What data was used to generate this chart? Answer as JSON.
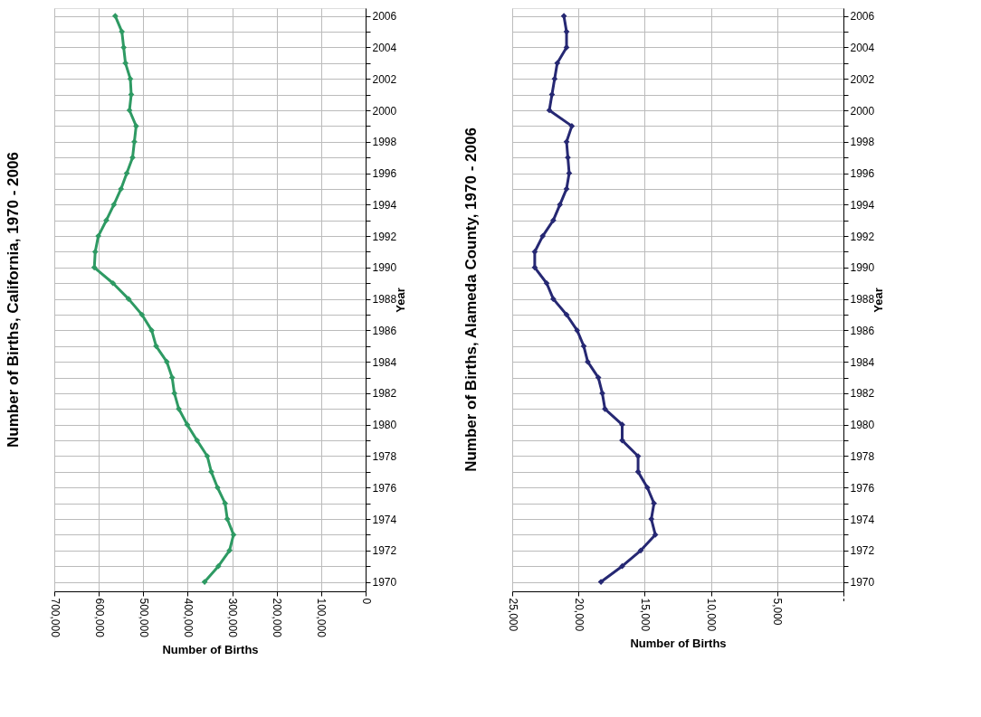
{
  "chart_data": [
    {
      "type": "line",
      "orientation": "horizontal",
      "title": "Number of Births, California, 1970 - 2006",
      "ylabel": "Year",
      "xlabel": "Number of Births",
      "x": [
        1970,
        1971,
        1972,
        1973,
        1974,
        1975,
        1976,
        1977,
        1978,
        1979,
        1980,
        1981,
        1982,
        1983,
        1984,
        1985,
        1986,
        1987,
        1988,
        1989,
        1990,
        1991,
        1992,
        1993,
        1994,
        1995,
        1996,
        1997,
        1998,
        1999,
        2000,
        2001,
        2002,
        2003,
        2004,
        2005,
        2006
      ],
      "series": [
        {
          "color": "#2e9a63",
          "values": [
            362000,
            331000,
            306000,
            297000,
            311000,
            316000,
            333000,
            347000,
            356000,
            379000,
            401000,
            420000,
            430000,
            435000,
            447000,
            471000,
            481000,
            503000,
            533000,
            568000,
            610000,
            608000,
            601000,
            583000,
            566000,
            550000,
            537000,
            524000,
            520000,
            516000,
            531000,
            527000,
            529000,
            540000,
            544000,
            548000,
            563000
          ]
        }
      ],
      "ylim": [
        1969.4,
        2006.5
      ],
      "yticks": [
        1970,
        {
          "value": 1971,
          "label": null
        },
        1972,
        {
          "value": 1973,
          "label": null
        },
        1974,
        {
          "value": 1975,
          "label": null
        },
        1976,
        {
          "value": 1977,
          "label": null
        },
        1978,
        {
          "value": 1979,
          "label": null
        },
        1980,
        {
          "value": 1981,
          "label": null
        },
        1982,
        {
          "value": 1983,
          "label": null
        },
        1984,
        {
          "value": 1985,
          "label": null
        },
        1986,
        {
          "value": 1987,
          "label": null
        },
        1988,
        {
          "value": 1989,
          "label": null
        },
        1990,
        {
          "value": 1991,
          "label": null
        },
        1992,
        {
          "value": 1993,
          "label": null
        },
        1994,
        {
          "value": 1995,
          "label": null
        },
        1996,
        {
          "value": 1997,
          "label": null
        },
        1998,
        {
          "value": 1999,
          "label": null
        },
        2000,
        {
          "value": 2001,
          "label": null
        },
        2002,
        {
          "value": 2003,
          "label": null
        },
        2004,
        {
          "value": 2005,
          "label": null
        },
        2006
      ],
      "xlim": [
        700000,
        0
      ],
      "xticks": [
        0,
        {
          "value": 100000,
          "label": "100,000"
        },
        {
          "value": 200000,
          "label": "200,000"
        },
        {
          "value": 300000,
          "label": "300,000"
        },
        {
          "value": 400000,
          "label": "400,000"
        },
        {
          "value": 500000,
          "label": "500,000"
        },
        {
          "value": 600000,
          "label": "600,000"
        },
        {
          "value": 700000,
          "label": "700,000"
        }
      ],
      "grid": true,
      "legend": false,
      "marker": "diamond",
      "line_style": "solid"
    },
    {
      "type": "line",
      "orientation": "horizontal",
      "title": "Number of Births, Alameda County, 1970 - 2006",
      "ylabel": "Year",
      "xlabel": "Number of Births",
      "x": [
        1970,
        1971,
        1972,
        1973,
        1974,
        1975,
        1976,
        1977,
        1978,
        1979,
        1980,
        1981,
        1982,
        1983,
        1984,
        1985,
        1986,
        1987,
        1988,
        1989,
        1990,
        1991,
        1992,
        1993,
        1994,
        1995,
        1996,
        1997,
        1998,
        1999,
        2000,
        2001,
        2002,
        2003,
        2004,
        2005,
        2006
      ],
      "series": [
        {
          "color": "#262873",
          "values": [
            18300,
            16700,
            15300,
            14200,
            14500,
            14300,
            14800,
            15500,
            15500,
            16700,
            16700,
            18000,
            18200,
            18500,
            19300,
            19600,
            20100,
            20900,
            21900,
            22400,
            23300,
            23300,
            22700,
            21900,
            21400,
            20900,
            20700,
            20800,
            20900,
            20500,
            22200,
            22000,
            21800,
            21600,
            20900,
            20900,
            21100
          ]
        }
      ],
      "ylim": [
        1969.4,
        2006.5
      ],
      "yticks": [
        1970,
        {
          "value": 1971,
          "label": null
        },
        1972,
        {
          "value": 1973,
          "label": null
        },
        1974,
        {
          "value": 1975,
          "label": null
        },
        1976,
        {
          "value": 1977,
          "label": null
        },
        1978,
        {
          "value": 1979,
          "label": null
        },
        1980,
        {
          "value": 1981,
          "label": null
        },
        1982,
        {
          "value": 1983,
          "label": null
        },
        1984,
        {
          "value": 1985,
          "label": null
        },
        1986,
        {
          "value": 1987,
          "label": null
        },
        1988,
        {
          "value": 1989,
          "label": null
        },
        1990,
        {
          "value": 1991,
          "label": null
        },
        1992,
        {
          "value": 1993,
          "label": null
        },
        1994,
        {
          "value": 1995,
          "label": null
        },
        1996,
        {
          "value": 1997,
          "label": null
        },
        1998,
        {
          "value": 1999,
          "label": null
        },
        2000,
        {
          "value": 2001,
          "label": null
        },
        2002,
        {
          "value": 2003,
          "label": null
        },
        2004,
        {
          "value": 2005,
          "label": null
        },
        2006
      ],
      "xlim": [
        25000,
        0
      ],
      "xticks": [
        {
          "value": 0,
          "label": "-"
        },
        {
          "value": 5000,
          "label": "5,000"
        },
        {
          "value": 10000,
          "label": "10,000"
        },
        {
          "value": 15000,
          "label": "15,000"
        },
        {
          "value": 20000,
          "label": "20,000"
        },
        {
          "value": 25000,
          "label": "25,000"
        }
      ],
      "grid": true,
      "legend": false,
      "marker": "diamond",
      "line_style": "solid"
    }
  ]
}
